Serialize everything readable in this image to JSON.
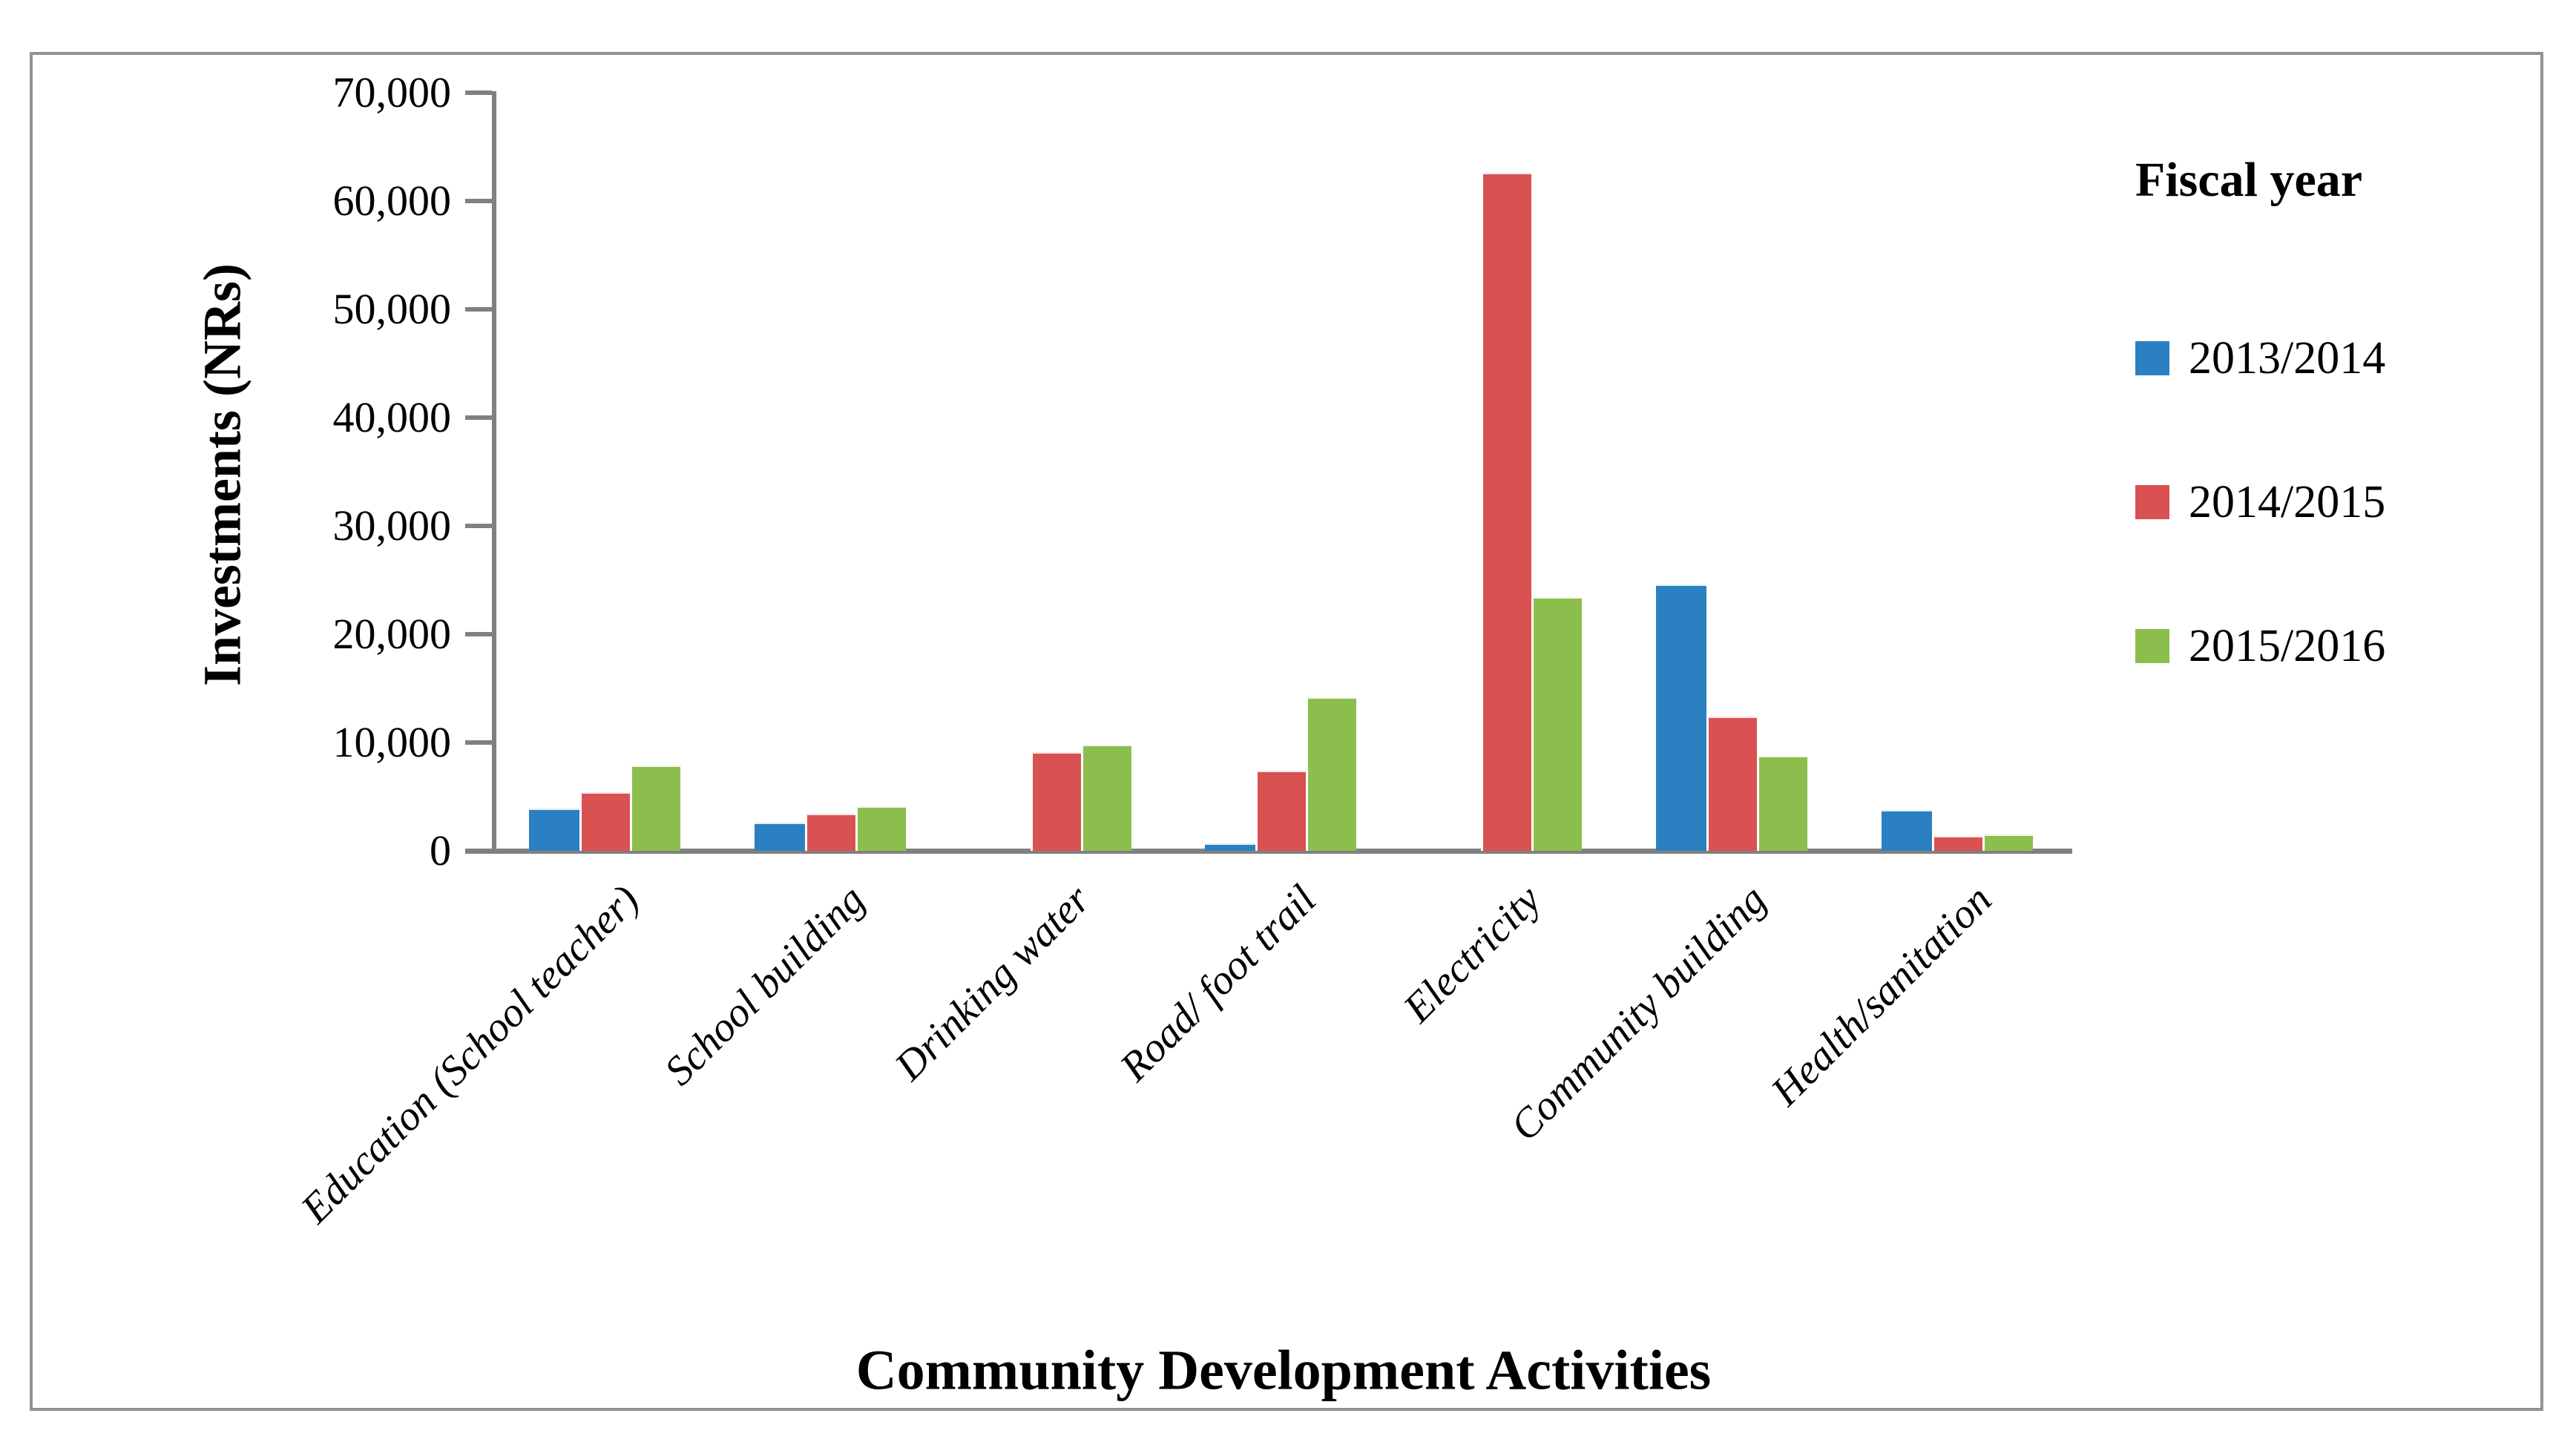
{
  "figure": {
    "background": "#ffffff",
    "border_color": "#929292",
    "axis_color": "#808080"
  },
  "chart_data": {
    "type": "bar",
    "title": "",
    "xlabel": "Community Development Activities",
    "ylabel": "Investments (NRs)",
    "ylim": [
      0,
      70000
    ],
    "ytick_step": 10000,
    "ytick_labels": [
      "0",
      "10,000",
      "20,000",
      "30,000",
      "40,000",
      "50,000",
      "60,000",
      "70,000"
    ],
    "grid": false,
    "legend_title": "Fiscal year",
    "legend_position": "right",
    "categories": [
      "Education (School teacher)",
      "School building",
      "Drinking water",
      "Road/ foot trail",
      "Electricity",
      "Community building",
      "Health/sanitation"
    ],
    "series": [
      {
        "name": "2013/2014",
        "color": "#2B80C1",
        "values": [
          3900,
          2600,
          0,
          700,
          0,
          24600,
          3800
        ]
      },
      {
        "name": "2014/2015",
        "color": "#D95151",
        "values": [
          5400,
          3400,
          9100,
          7400,
          62600,
          12400,
          1400
        ]
      },
      {
        "name": "2015/2016",
        "color": "#8CBE4E",
        "values": [
          7900,
          4100,
          9800,
          14200,
          23400,
          8800,
          1500
        ]
      }
    ]
  }
}
